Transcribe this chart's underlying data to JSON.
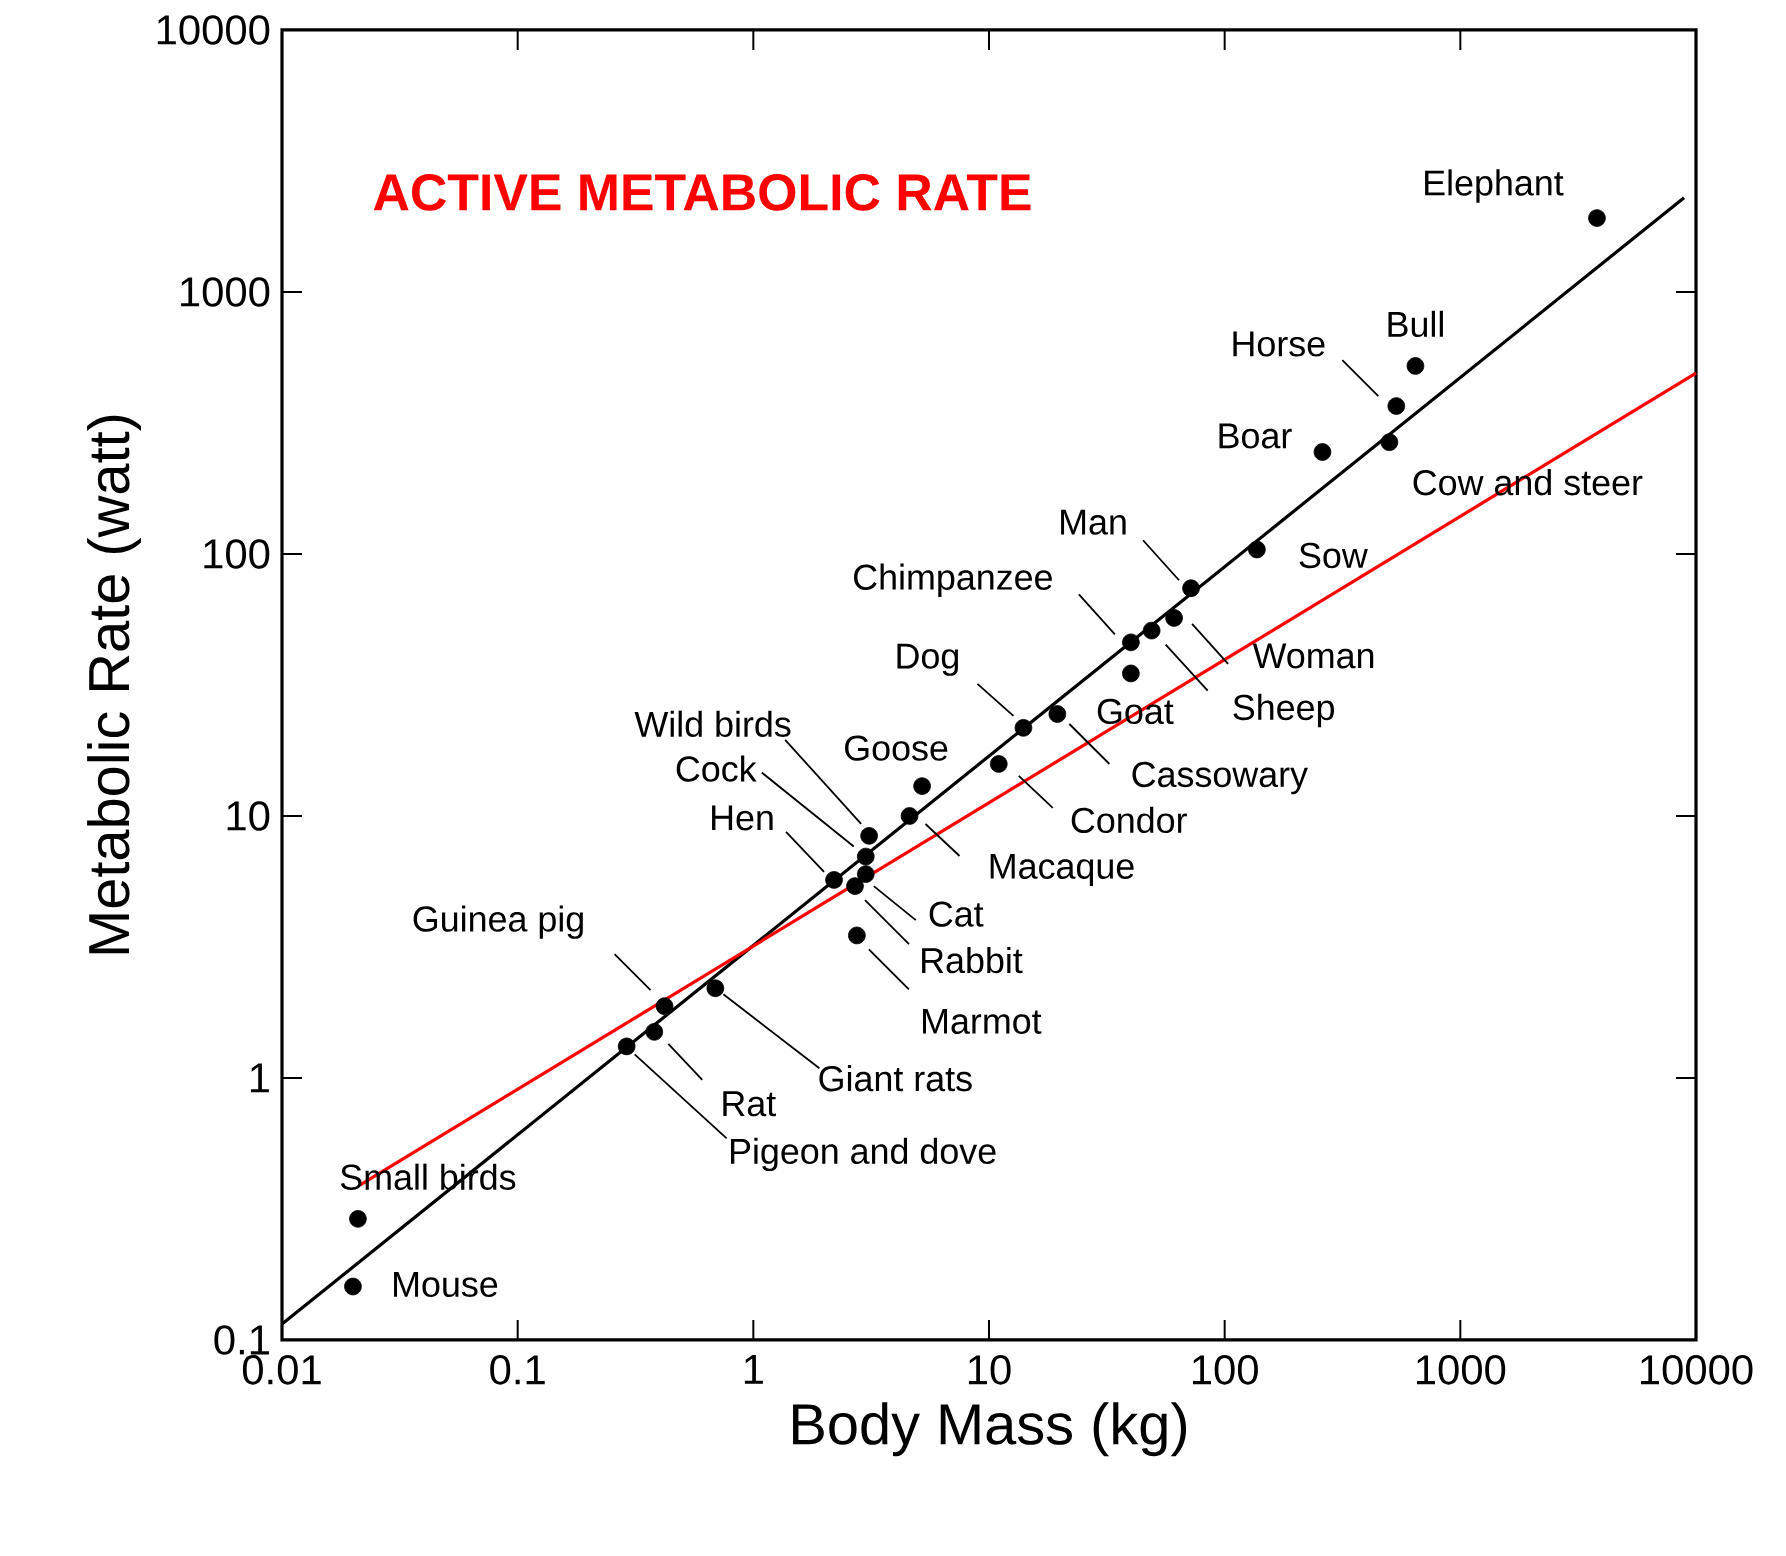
{
  "chart_data": {
    "type": "scatter",
    "title": "ACTIVE METABOLIC RATE",
    "xlabel": "Body Mass (kg)",
    "ylabel": "Metabolic Rate (watt)",
    "log": "xy",
    "grid": false,
    "legend": false,
    "xlim": [
      0.01,
      10000
    ],
    "ylim": [
      0.1,
      10000
    ],
    "xticks": [
      0.01,
      0.1,
      1,
      10,
      100,
      1000,
      10000
    ],
    "yticks": [
      0.1,
      1,
      10,
      100,
      1000,
      10000
    ],
    "series": [
      {
        "type": "scatter",
        "marker": "circle",
        "color": "#000000",
        "x": [
          0.02,
          0.021,
          0.29,
          0.38,
          0.42,
          0.69,
          2.75,
          2.2,
          2.7,
          3.0,
          3.0,
          3.1,
          4.6,
          5.2,
          11,
          14,
          19.5,
          40,
          40,
          49,
          61,
          72,
          137,
          260,
          500,
          535,
          645,
          3800
        ],
        "values": [
          0.16,
          0.29,
          1.32,
          1.5,
          1.88,
          2.2,
          3.5,
          5.7,
          5.4,
          6.0,
          7.0,
          8.4,
          10,
          13,
          15.8,
          21.7,
          24.5,
          35,
          46,
          51,
          57,
          74,
          104,
          245,
          267,
          367,
          522,
          1915
        ]
      },
      {
        "type": "line",
        "color": "#000000",
        "x": [
          0.01,
          8900
        ],
        "values": [
          0.115,
          2290
        ]
      },
      {
        "type": "line",
        "color": "#ff0000",
        "x": [
          0.0214,
          10000
        ],
        "values": [
          0.39,
          490
        ]
      }
    ],
    "annotations": [
      {
        "text": "Mouse",
        "x": 0.02,
        "y": 0.16
      },
      {
        "text": "Small birds",
        "x": 0.021,
        "y": 0.29
      },
      {
        "text": "Pigeon and dove",
        "x": 0.29,
        "y": 1.32
      },
      {
        "text": "Rat",
        "x": 0.38,
        "y": 1.5
      },
      {
        "text": "Guinea pig",
        "x": 0.42,
        "y": 1.88
      },
      {
        "text": "Giant rats",
        "x": 0.69,
        "y": 2.2
      },
      {
        "text": "Marmot",
        "x": 2.75,
        "y": 3.5
      },
      {
        "text": "Hen",
        "x": 2.2,
        "y": 5.7
      },
      {
        "text": "Rabbit",
        "x": 2.7,
        "y": 5.4
      },
      {
        "text": "Cat",
        "x": 3.0,
        "y": 6.0
      },
      {
        "text": "Cock",
        "x": 3.0,
        "y": 7.0
      },
      {
        "text": "Wild birds",
        "x": 3.1,
        "y": 8.4
      },
      {
        "text": "Macaque",
        "x": 4.6,
        "y": 10
      },
      {
        "text": "Goose",
        "x": 5.2,
        "y": 13
      },
      {
        "text": "Condor",
        "x": 11,
        "y": 15.8
      },
      {
        "text": "Dog",
        "x": 14,
        "y": 21.7
      },
      {
        "text": "Cassowary",
        "x": 19.5,
        "y": 24.5
      },
      {
        "text": "Goat",
        "x": 40,
        "y": 35
      },
      {
        "text": "Chimpanzee",
        "x": 40,
        "y": 46
      },
      {
        "text": "Sheep",
        "x": 49,
        "y": 51
      },
      {
        "text": "Woman",
        "x": 61,
        "y": 57
      },
      {
        "text": "Man",
        "x": 72,
        "y": 74
      },
      {
        "text": "Sow",
        "x": 137,
        "y": 104
      },
      {
        "text": "Boar",
        "x": 260,
        "y": 245
      },
      {
        "text": "Cow and steer",
        "x": 500,
        "y": 267
      },
      {
        "text": "Horse",
        "x": 535,
        "y": 367
      },
      {
        "text": "Bull",
        "x": 645,
        "y": 522
      },
      {
        "text": "Elephant",
        "x": 3800,
        "y": 1915
      }
    ]
  }
}
